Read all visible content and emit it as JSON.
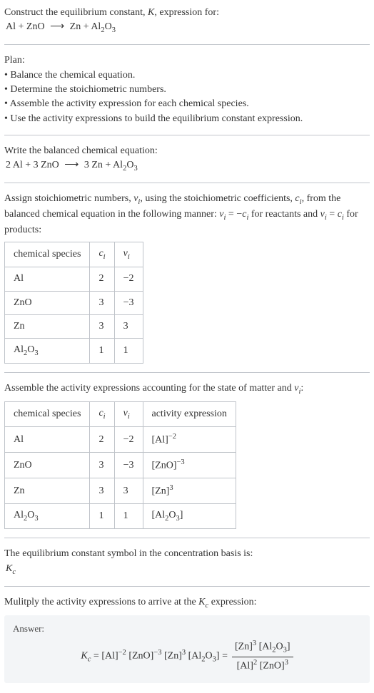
{
  "intro": {
    "line1_a": "Construct the equilibrium constant, ",
    "K": "K",
    "line1_b": ", expression for:",
    "eq_lhs_1": "Al + ZnO",
    "arrow": "⟶",
    "eq_rhs_1": "Zn + Al",
    "sub23_2": "2",
    "O": "O",
    "sub23_3": "3"
  },
  "plan": {
    "title": "Plan:",
    "b1": "• Balance the chemical equation.",
    "b2": "• Determine the stoichiometric numbers.",
    "b3": "• Assemble the activity expression for each chemical species.",
    "b4": "• Use the activity expressions to build the equilibrium constant expression."
  },
  "balanced": {
    "title": "Write the balanced chemical equation:",
    "lhs": "2 Al + 3 ZnO",
    "arrow": "⟶",
    "rhs_a": "3 Zn + Al",
    "sub2": "2",
    "O": "O",
    "sub3": "3"
  },
  "assign": {
    "text_a": "Assign stoichiometric numbers, ",
    "nu_i": "ν",
    "sub_i": "i",
    "text_b": ", using the stoichiometric coefficients, ",
    "c_i": "c",
    "text_c": ", from the balanced chemical equation in the following manner: ",
    "rel1_a": "ν",
    "rel1_b": " = −",
    "rel1_c": "c",
    "text_d": " for reactants and ",
    "rel2_a": "ν",
    "rel2_b": " = ",
    "rel2_c": "c",
    "text_e": " for products:"
  },
  "table1": {
    "h1": "chemical species",
    "h2": "c",
    "h2_sub": "i",
    "h3": "ν",
    "h3_sub": "i",
    "rows": [
      {
        "sp": "Al",
        "c": "2",
        "nu": "−2"
      },
      {
        "sp": "ZnO",
        "c": "3",
        "nu": "−3"
      },
      {
        "sp": "Zn",
        "c": "3",
        "nu": "3"
      },
      {
        "sp_a": "Al",
        "sp_2": "2",
        "sp_O": "O",
        "sp_3": "3",
        "c": "1",
        "nu": "1"
      }
    ]
  },
  "assemble": {
    "text_a": "Assemble the activity expressions accounting for the state of matter and ",
    "nu": "ν",
    "sub_i": "i",
    "text_b": ":"
  },
  "table2": {
    "h1": "chemical species",
    "h2": "c",
    "h2_sub": "i",
    "h3": "ν",
    "h3_sub": "i",
    "h4": "activity expression",
    "rows": [
      {
        "sp": "Al",
        "c": "2",
        "nu": "−2",
        "act_base": "[Al]",
        "act_exp": "−2"
      },
      {
        "sp": "ZnO",
        "c": "3",
        "nu": "−3",
        "act_base": "[ZnO]",
        "act_exp": "−3"
      },
      {
        "sp": "Zn",
        "c": "3",
        "nu": "3",
        "act_base": "[Zn]",
        "act_exp": "3"
      },
      {
        "sp_a": "Al",
        "sp_2": "2",
        "sp_O": "O",
        "sp_3": "3",
        "c": "1",
        "nu": "1",
        "act_a": "[Al",
        "act_2": "2",
        "act_O": "O",
        "act_3": "3",
        "act_b": "]"
      }
    ]
  },
  "basis": {
    "text": "The equilibrium constant symbol in the concentration basis is:",
    "K": "K",
    "sub_c": "c"
  },
  "multiply": {
    "text_a": "Mulitply the activity expressions to arrive at the ",
    "K": "K",
    "sub_c": "c",
    "text_b": " expression:"
  },
  "answer": {
    "label": "Answer:",
    "Kc": "K",
    "sub_c": "c",
    "eq": " = ",
    "t1": "[Al]",
    "e1": "−2",
    "t2": " [ZnO]",
    "e2": "−3",
    "t3": " [Zn]",
    "e3": "3",
    "t4_a": " [Al",
    "t4_2": "2",
    "t4_O": "O",
    "t4_3": "3",
    "t4_b": "] = ",
    "num_a": "[Zn]",
    "num_e": "3",
    "num_b": " [Al",
    "num_2": "2",
    "num_O": "O",
    "num_3": "3",
    "num_c": "]",
    "den_a": "[Al]",
    "den_e1": "2",
    "den_b": " [ZnO]",
    "den_e2": "3"
  }
}
